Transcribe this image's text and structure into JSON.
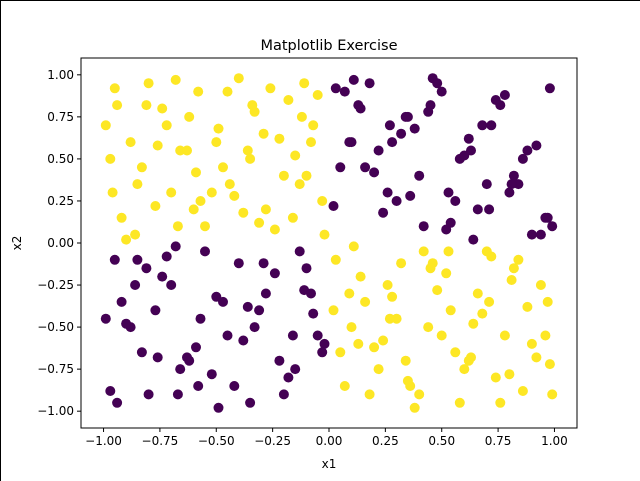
{
  "chart_data": {
    "type": "scatter",
    "title": "Matplotlib Exercise",
    "xlabel": "x1",
    "ylabel": "x2",
    "xlim": [
      -1.1,
      1.1
    ],
    "ylim": [
      -1.1,
      1.1
    ],
    "xticks": [
      -1.0,
      -0.75,
      -0.5,
      -0.25,
      0.0,
      0.25,
      0.5,
      0.75,
      1.0
    ],
    "xtick_labels": [
      "−1.00",
      "−0.75",
      "−0.50",
      "−0.25",
      "0.00",
      "0.25",
      "0.50",
      "0.75",
      "1.00"
    ],
    "yticks": [
      -1.0,
      -0.75,
      -0.5,
      -0.25,
      0.0,
      0.25,
      0.5,
      0.75,
      1.0
    ],
    "ytick_labels": [
      "−1.00",
      "−0.75",
      "−0.50",
      "−0.25",
      "0.00",
      "0.25",
      "0.50",
      "0.75",
      "1.00"
    ],
    "grid": false,
    "legend": "none",
    "colors": {
      "class_0": "#440154",
      "class_1": "#fde725",
      "axes": "#000000"
    },
    "series": [
      {
        "color": "#fde725",
        "x": [
          -0.95,
          -0.88,
          -0.8,
          -0.7,
          -0.62,
          -0.55,
          -0.45,
          -0.35,
          -0.28,
          -0.18,
          -0.1,
          -0.02,
          -0.92,
          -0.83,
          -0.74,
          -0.66,
          -0.57,
          -0.49,
          -0.4,
          -0.31,
          -0.22,
          -0.13,
          -0.05,
          -0.97,
          -0.86,
          -0.77,
          -0.68,
          -0.59,
          -0.5,
          -0.42,
          -0.33,
          -0.24,
          -0.15,
          -0.07,
          -0.94,
          -0.85,
          -0.76,
          -0.67,
          -0.58,
          -0.47,
          -0.38,
          -0.29,
          -0.2,
          -0.11,
          -0.03,
          -0.9,
          -0.72,
          -0.52,
          -0.36,
          -0.16,
          -0.08,
          -0.99,
          -0.81,
          -0.63,
          -0.44,
          -0.26,
          -0.12,
          -0.6,
          -0.34,
          -0.96,
          0.03,
          0.1,
          0.18,
          0.26,
          0.34,
          0.42,
          0.5,
          0.58,
          0.66,
          0.74,
          0.82,
          0.9,
          0.97,
          0.05,
          0.14,
          0.22,
          0.3,
          0.38,
          0.46,
          0.54,
          0.62,
          0.7,
          0.78,
          0.86,
          0.94,
          0.02,
          0.11,
          0.2,
          0.28,
          0.36,
          0.44,
          0.52,
          0.6,
          0.68,
          0.76,
          0.84,
          0.92,
          0.99,
          0.07,
          0.16,
          0.24,
          0.32,
          0.4,
          0.48,
          0.56,
          0.64,
          0.72,
          0.8,
          0.88,
          0.96,
          0.09,
          0.27,
          0.45,
          0.63,
          0.81,
          0.98,
          0.35,
          0.71,
          0.13,
          0.53
        ],
        "y": [
          0.92,
          0.6,
          0.95,
          0.3,
          0.75,
          0.1,
          0.9,
          0.5,
          0.2,
          0.85,
          0.4,
          0.05,
          0.15,
          0.45,
          0.8,
          0.55,
          0.25,
          0.68,
          0.98,
          0.12,
          0.62,
          0.35,
          0.88,
          0.5,
          0.05,
          0.22,
          0.97,
          0.42,
          0.6,
          0.28,
          0.78,
          0.08,
          0.52,
          0.7,
          0.82,
          0.35,
          0.58,
          0.1,
          0.9,
          0.45,
          0.18,
          0.65,
          0.4,
          0.95,
          0.25,
          0.02,
          0.7,
          0.3,
          0.55,
          0.15,
          0.6,
          0.7,
          0.82,
          0.55,
          0.35,
          0.92,
          0.75,
          0.2,
          0.82,
          0.3,
          -0.1,
          -0.5,
          -0.9,
          -0.25,
          -0.7,
          -0.05,
          -0.55,
          -0.95,
          -0.3,
          -0.8,
          -0.15,
          -0.6,
          -0.35,
          -0.65,
          -0.2,
          -0.75,
          -0.45,
          -0.98,
          -0.12,
          -0.4,
          -0.7,
          -0.05,
          -0.55,
          -0.88,
          -0.25,
          -0.4,
          -0.02,
          -0.62,
          -0.32,
          -0.85,
          -0.5,
          -0.18,
          -0.75,
          -0.42,
          -0.95,
          -0.1,
          -0.68,
          -0.9,
          -0.85,
          -0.35,
          -0.58,
          -0.12,
          -0.9,
          -0.28,
          -0.65,
          -0.48,
          -0.08,
          -0.78,
          -0.38,
          -0.55,
          -0.3,
          -0.45,
          -0.15,
          -0.68,
          -0.22,
          -0.72,
          -0.82,
          -0.35,
          -0.6,
          -0.05
        ]
      },
      {
        "color": "#440154",
        "x": [
          -0.95,
          -0.88,
          -0.8,
          -0.7,
          -0.62,
          -0.55,
          -0.45,
          -0.35,
          -0.28,
          -0.18,
          -0.1,
          -0.02,
          -0.92,
          -0.83,
          -0.74,
          -0.66,
          -0.57,
          -0.49,
          -0.4,
          -0.31,
          -0.22,
          -0.13,
          -0.05,
          -0.97,
          -0.86,
          -0.77,
          -0.68,
          -0.59,
          -0.5,
          -0.42,
          -0.33,
          -0.24,
          -0.15,
          -0.07,
          -0.94,
          -0.85,
          -0.76,
          -0.67,
          -0.58,
          -0.47,
          -0.38,
          -0.29,
          -0.2,
          -0.11,
          -0.03,
          -0.9,
          -0.72,
          -0.52,
          -0.36,
          -0.16,
          -0.08,
          -0.99,
          -0.81,
          -0.63,
          0.03,
          0.1,
          0.18,
          0.26,
          0.34,
          0.42,
          0.5,
          0.58,
          0.66,
          0.74,
          0.82,
          0.9,
          0.97,
          0.05,
          0.14,
          0.22,
          0.3,
          0.38,
          0.46,
          0.54,
          0.62,
          0.7,
          0.78,
          0.86,
          0.94,
          0.02,
          0.11,
          0.2,
          0.28,
          0.36,
          0.44,
          0.52,
          0.6,
          0.68,
          0.76,
          0.84,
          0.92,
          0.99,
          0.07,
          0.16,
          0.24,
          0.32,
          0.4,
          0.48,
          0.56,
          0.64,
          0.72,
          0.8,
          0.88,
          0.96,
          0.09,
          0.27,
          0.45,
          0.63,
          0.81,
          0.98,
          0.35,
          0.71,
          0.13,
          0.53
        ],
        "y": [
          -0.1,
          -0.5,
          -0.9,
          -0.25,
          -0.7,
          -0.05,
          -0.55,
          -0.95,
          -0.3,
          -0.8,
          -0.15,
          -0.6,
          -0.35,
          -0.65,
          -0.2,
          -0.75,
          -0.45,
          -0.98,
          -0.12,
          -0.4,
          -0.7,
          -0.05,
          -0.55,
          -0.88,
          -0.25,
          -0.4,
          -0.02,
          -0.62,
          -0.32,
          -0.85,
          -0.5,
          -0.18,
          -0.75,
          -0.42,
          -0.95,
          -0.1,
          -0.68,
          -0.9,
          -0.85,
          -0.35,
          -0.58,
          -0.12,
          -0.9,
          -0.28,
          -0.65,
          -0.48,
          -0.08,
          -0.78,
          -0.38,
          -0.55,
          -0.3,
          -0.45,
          -0.15,
          -0.68,
          0.92,
          0.6,
          0.95,
          0.3,
          0.75,
          0.1,
          0.9,
          0.5,
          0.2,
          0.85,
          0.4,
          0.05,
          0.15,
          0.45,
          0.8,
          0.55,
          0.25,
          0.68,
          0.98,
          0.12,
          0.62,
          0.35,
          0.88,
          0.5,
          0.05,
          0.22,
          0.97,
          0.42,
          0.6,
          0.28,
          0.78,
          0.08,
          0.52,
          0.7,
          0.82,
          0.35,
          0.58,
          0.1,
          0.9,
          0.45,
          0.18,
          0.65,
          0.4,
          0.95,
          0.25,
          0.02,
          0.7,
          0.3,
          0.55,
          0.15,
          0.6,
          0.7,
          0.82,
          0.55,
          0.35,
          0.92,
          0.75,
          0.2,
          0.82,
          0.3
        ]
      }
    ]
  }
}
